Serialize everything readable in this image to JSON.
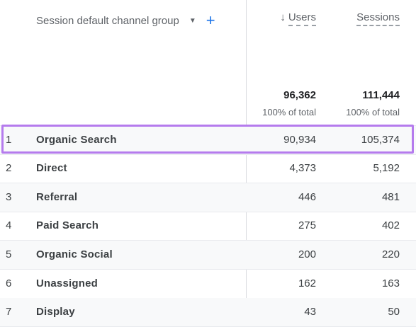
{
  "header": {
    "dimension_label": "Session default channel group",
    "caret_icon": "caret-down-icon",
    "add_icon": "plus-icon",
    "users_label": "Users",
    "users_sort_icon": "arrow-down-icon",
    "sessions_label": "Sessions"
  },
  "totals": {
    "users": "96,362",
    "users_sub": "100% of total",
    "sessions": "111,444",
    "sessions_sub": "100% of total"
  },
  "rows": [
    {
      "index": "1",
      "channel": "Organic Search",
      "users": "90,934",
      "sessions": "105,374"
    },
    {
      "index": "2",
      "channel": "Direct",
      "users": "4,373",
      "sessions": "5,192"
    },
    {
      "index": "3",
      "channel": "Referral",
      "users": "446",
      "sessions": "481"
    },
    {
      "index": "4",
      "channel": "Paid Search",
      "users": "275",
      "sessions": "402"
    },
    {
      "index": "5",
      "channel": "Organic Social",
      "users": "200",
      "sessions": "220"
    },
    {
      "index": "6",
      "channel": "Unassigned",
      "users": "162",
      "sessions": "163"
    },
    {
      "index": "7",
      "channel": "Display",
      "users": "43",
      "sessions": "50"
    }
  ],
  "colors": {
    "highlight": "#b57bed",
    "accent": "#1a73e8"
  }
}
